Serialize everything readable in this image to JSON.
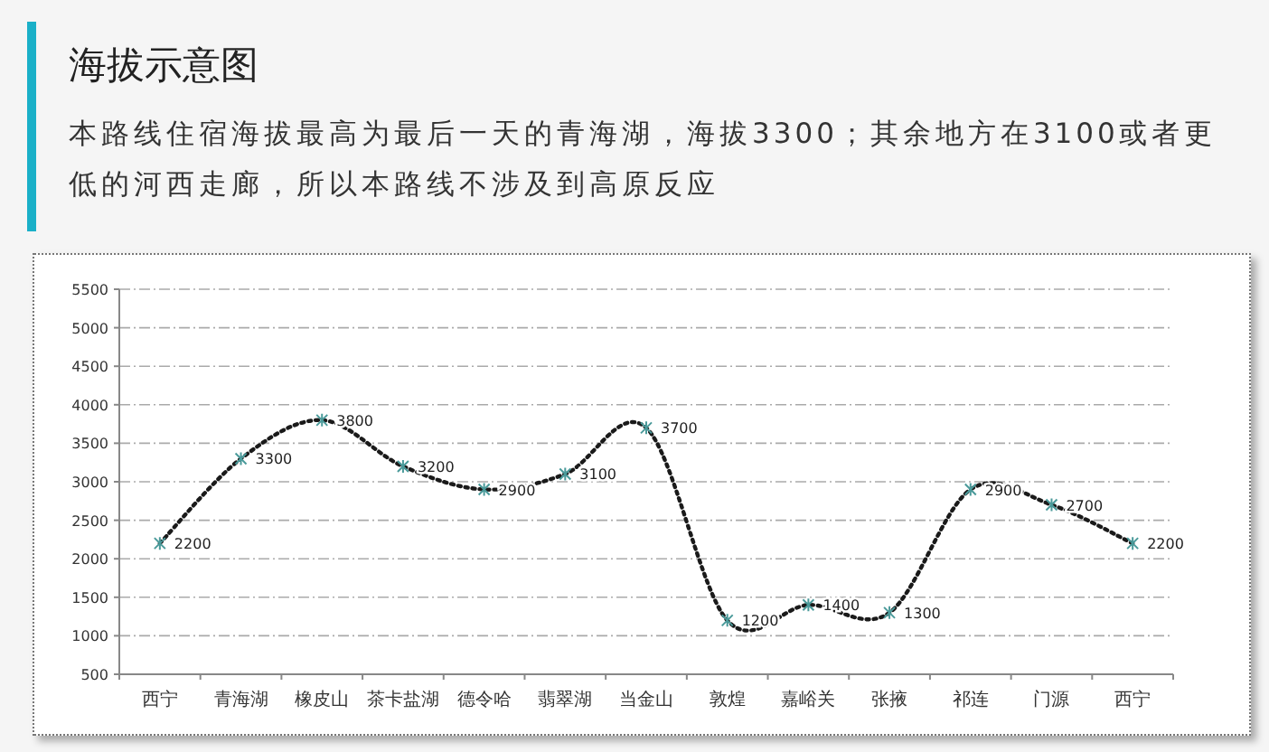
{
  "chart_data": {
    "type": "line",
    "title": "海拔示意图",
    "subtitle": "本路线住宿海拔最高为最后一天的青海湖，海拔3300；其余地方在3100或者更低的河西走廊，所以本路线不涉及到高原反应",
    "categories": [
      "西宁",
      "青海湖",
      "橡皮山",
      "茶卡盐湖",
      "德令哈",
      "翡翠湖",
      "当金山",
      "敦煌",
      "嘉峪关",
      "张掖",
      "祁连",
      "门源",
      "西宁"
    ],
    "series": [
      {
        "color": "#1a1a1a",
        "values": [
          2200,
          3300,
          3800,
          3200,
          2900,
          3100,
          3700,
          1200,
          1400,
          1300,
          2900,
          2700,
          2200
        ]
      }
    ],
    "ylim": [
      500,
      5500
    ],
    "yticks": [
      500,
      1000,
      1500,
      2000,
      2500,
      3000,
      3500,
      4000,
      4500,
      5000,
      5500
    ],
    "grid": "y",
    "marker": "cross",
    "line_style": "dotted",
    "data_labels": true
  }
}
